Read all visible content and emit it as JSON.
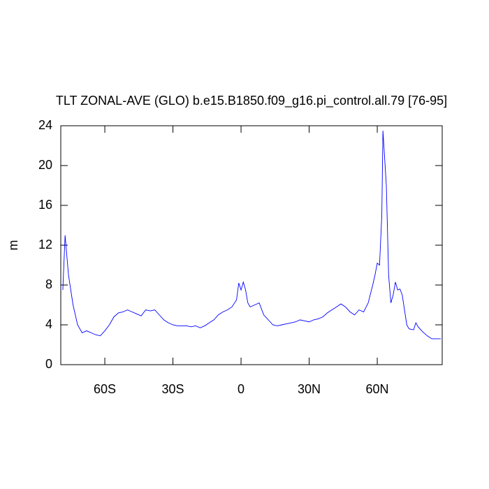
{
  "chart_data": {
    "type": "line",
    "title": "TLT ZONAL-AVE (GLO) b.e15.B1850.f09_g16.pi_control.all.79 [76-95]",
    "ylabel": "m",
    "x": [
      -78.5,
      -77.5,
      -76,
      -74,
      -72,
      -70,
      -68,
      -66,
      -64,
      -62,
      -60,
      -58,
      -56,
      -54,
      -52,
      -50,
      -48,
      -46,
      -44,
      -42,
      -40,
      -38,
      -36,
      -34,
      -32,
      -30,
      -28,
      -26,
      -24,
      -22,
      -20,
      -18,
      -16,
      -14,
      -12,
      -10,
      -8,
      -6,
      -4,
      -2,
      -1,
      0,
      1,
      2,
      3,
      4,
      6,
      8,
      10,
      12,
      14,
      16,
      18,
      20,
      22,
      24,
      26,
      28,
      30,
      32,
      34,
      36,
      38,
      40,
      42,
      44,
      46,
      48,
      50,
      52,
      54,
      56,
      58,
      59,
      60,
      61,
      62,
      62.5,
      64,
      65,
      66,
      67,
      68,
      69,
      70,
      71,
      72,
      73,
      74,
      76,
      77,
      78,
      80,
      82,
      84,
      86,
      88
    ],
    "series": [
      {
        "name": "TLT",
        "color": "#0000ff",
        "values": [
          7.5,
          13,
          9,
          6,
          4,
          3.2,
          3.4,
          3.2,
          3.0,
          2.9,
          3.4,
          4.0,
          4.8,
          5.2,
          5.3,
          5.5,
          5.3,
          5.1,
          4.9,
          5.5,
          5.4,
          5.5,
          5.0,
          4.5,
          4.2,
          4.0,
          3.9,
          3.9,
          3.9,
          3.8,
          3.9,
          3.7,
          3.9,
          4.2,
          4.5,
          5.0,
          5.3,
          5.5,
          5.8,
          6.5,
          8.2,
          7.5,
          8.3,
          7.5,
          6.2,
          5.8,
          6.0,
          6.2,
          5.0,
          4.5,
          4.0,
          3.9,
          4.0,
          4.1,
          4.2,
          4.3,
          4.5,
          4.4,
          4.3,
          4.5,
          4.6,
          4.8,
          5.2,
          5.5,
          5.8,
          6.1,
          5.8,
          5.3,
          5.0,
          5.5,
          5.3,
          6.2,
          8.0,
          9.0,
          10.2,
          10.0,
          15,
          23.5,
          18,
          9,
          6.2,
          7.0,
          8.3,
          7.5,
          7.6,
          7.0,
          5.5,
          4.0,
          3.6,
          3.5,
          4.2,
          3.8,
          3.3,
          2.9,
          2.6,
          2.6,
          2.6
        ]
      }
    ],
    "xlim": [
      -79.4,
      88.6
    ],
    "ylim": [
      0,
      24
    ],
    "xticks": [
      {
        "value": -60,
        "label": "60S"
      },
      {
        "value": -30,
        "label": "30S"
      },
      0,
      {
        "value": 30,
        "label": "30N"
      },
      {
        "value": 60,
        "label": "60N"
      }
    ],
    "yticks": [
      0,
      4,
      8,
      12,
      16,
      20,
      24
    ]
  }
}
